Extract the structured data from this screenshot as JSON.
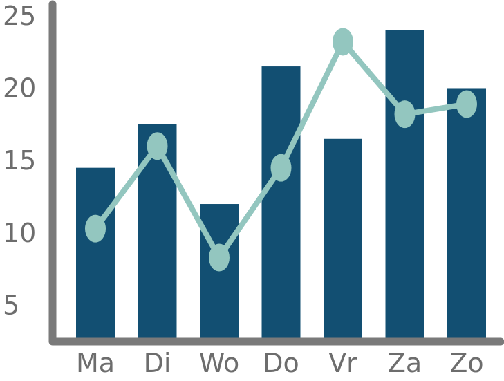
{
  "chart_data": {
    "type": "bar",
    "categories": [
      "Ma",
      "Di",
      "Wo",
      "Do",
      "Vr",
      "Za",
      "Zo"
    ],
    "series": [
      {
        "type": "bar",
        "values": [
          14.5,
          17.5,
          12.0,
          21.5,
          16.5,
          24.0,
          20.0
        ]
      },
      {
        "type": "line",
        "values": [
          10.3,
          16.0,
          8.3,
          14.5,
          23.2,
          18.2,
          18.9
        ]
      }
    ],
    "ylim": [
      2.5,
      25.8
    ],
    "yticks": [
      5,
      10,
      15,
      20,
      25
    ],
    "grid": false,
    "legend": "none",
    "title": "",
    "xlabel": "",
    "ylabel": ""
  },
  "colors": {
    "bar": "#124f72",
    "line": "#93c6bf",
    "axis": "#7a7a7a",
    "text": "#6d6d6d"
  }
}
